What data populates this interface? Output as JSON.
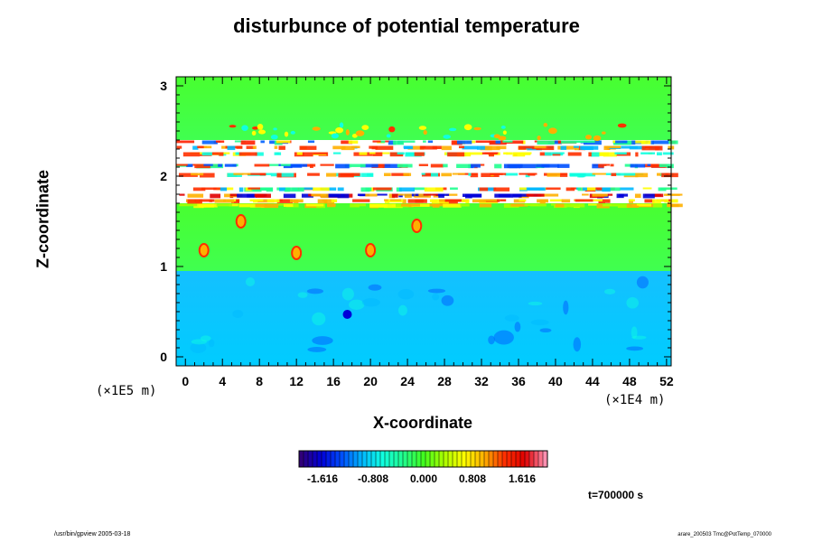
{
  "chart_data": {
    "type": "heatmap",
    "title": "disturbunce of potential temperature",
    "xlabel": "X-coordinate",
    "ylabel": "Z-coordinate",
    "x_unit": "(×1E4 m)",
    "y_unit": "(×1E5 m)",
    "xlim": [
      -1,
      52.5
    ],
    "ylim": [
      -0.1,
      3.1
    ],
    "x_ticks": [
      0,
      4,
      8,
      12,
      16,
      20,
      24,
      28,
      32,
      36,
      40,
      44,
      48,
      52
    ],
    "y_ticks": [
      0,
      1,
      2,
      3
    ],
    "colorbar": {
      "ticks": [
        "-1.616",
        "-0.808",
        "0.000",
        "0.808",
        "1.616"
      ],
      "colors": [
        "#30007a",
        "#0000d8",
        "#0050ff",
        "#00b8ff",
        "#10ffe0",
        "#20ff90",
        "#40ff20",
        "#a8ff00",
        "#ffff00",
        "#ffb000",
        "#ff3000",
        "#e00000",
        "#ff90b0"
      ]
    },
    "time": "t=700000 s",
    "regions": [
      {
        "z_from": -0.1,
        "z_to": 0.95,
        "color": "#00ccff",
        "meaning": "negative disturbance"
      },
      {
        "z_from": 0.95,
        "z_to": 1.7,
        "color": "#40ff40",
        "meaning": "near zero"
      },
      {
        "z_from": 1.7,
        "z_to": 2.4,
        "color": "#ffffff",
        "meaning": "undefined/saturated"
      },
      {
        "z_from": 2.4,
        "z_to": 3.1,
        "color": "#40ff40",
        "meaning": "near zero"
      }
    ]
  },
  "footer": {
    "left": "/usr/bin/gpview 2005-03-18",
    "right": "arare_200503 Tmc@PotTemp_070000"
  }
}
